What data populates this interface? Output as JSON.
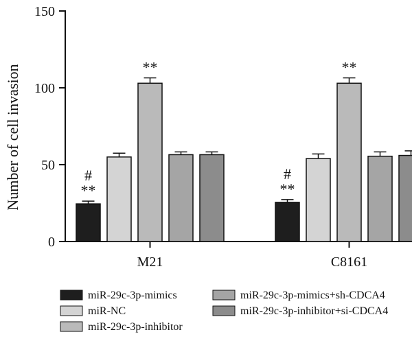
{
  "chart_data": {
    "type": "bar",
    "ylabel": "Number of cell invasion",
    "ylim": [
      0,
      150
    ],
    "yticks": [
      "0",
      "50",
      "100",
      "150"
    ],
    "categories": [
      "M21",
      "C8161"
    ],
    "series": [
      {
        "name": "miR-29c-3p-mimics",
        "color": "#1e1e1e",
        "values": [
          24.5,
          25.5
        ],
        "errors": [
          1.8,
          1.8
        ],
        "annotations": [
          [
            "**",
            "#"
          ],
          [
            "**",
            "#"
          ]
        ]
      },
      {
        "name": "miR-NC",
        "color": "#d4d4d4",
        "values": [
          55,
          54
        ],
        "errors": [
          2.5,
          3.0
        ],
        "annotations": [
          [],
          []
        ]
      },
      {
        "name": "miR-29c-3p-inhibitor",
        "color": "#bababa",
        "values": [
          103,
          103
        ],
        "errors": [
          3.5,
          3.5
        ],
        "annotations": [
          [
            "**"
          ],
          [
            "**"
          ]
        ]
      },
      {
        "name": "miR-29c-3p-mimics+sh-CDCA4",
        "color": "#a5a5a5",
        "values": [
          56.5,
          55.5
        ],
        "errors": [
          1.8,
          2.8
        ],
        "annotations": [
          [],
          []
        ]
      },
      {
        "name": "miR-29c-3p-inhibitor+si-CDCA4",
        "color": "#8c8c8c",
        "values": [
          56.5,
          56
        ],
        "errors": [
          1.8,
          3.0
        ],
        "annotations": [
          [],
          []
        ]
      }
    ],
    "legend_position": "bottom",
    "grid": false
  }
}
